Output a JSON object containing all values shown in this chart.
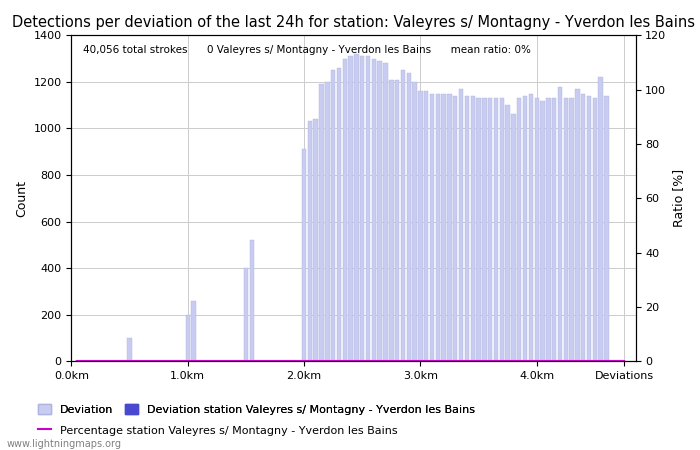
{
  "title": "Detections per deviation of the last 24h for station: Valeyres s/ Montagny - Yverdon les Bains",
  "xlabel": "",
  "ylabel_left": "Count",
  "ylabel_right": "Ratio [%]",
  "annotation_text": "40,056 total strokes      0 Valeyres s/ Montagny - Yverdon les Bains      mean ratio: 0%",
  "watermark": "www.lightningmaps.org",
  "xlim": [
    0.0,
    4.85
  ],
  "ylim_left": [
    0,
    1400
  ],
  "ylim_right": [
    0,
    120
  ],
  "xtick_labels": [
    "0.0km",
    "1.0km",
    "2.0km",
    "3.0km",
    "4.0km",
    "Deviations"
  ],
  "xtick_positions": [
    0.0,
    1.0,
    2.0,
    3.0,
    4.0,
    4.75
  ],
  "ytick_left": [
    0,
    200,
    400,
    600,
    800,
    1000,
    1200,
    1400
  ],
  "ytick_right": [
    0,
    20,
    40,
    60,
    80,
    100,
    120
  ],
  "bar_width": 0.038,
  "bar_color": "#c8ccf0",
  "bar_edge_color": "#b0b4e0",
  "station_bar_color": "#4848d0",
  "percentage_color": "#cc00cc",
  "background_color": "#ffffff",
  "plot_bg_color": "#ffffff",
  "grid_color": "#cccccc",
  "title_fontsize": 10.5,
  "axis_fontsize": 9,
  "tick_fontsize": 8,
  "legend_fontsize": 8,
  "bar_positions": [
    0.05,
    0.1,
    0.15,
    0.2,
    0.25,
    0.3,
    0.35,
    0.4,
    0.45,
    0.5,
    0.55,
    0.6,
    0.65,
    0.7,
    0.75,
    0.8,
    0.85,
    0.9,
    0.95,
    1.0,
    1.05,
    1.1,
    1.15,
    1.2,
    1.25,
    1.3,
    1.35,
    1.4,
    1.45,
    1.5,
    1.55,
    1.6,
    1.65,
    1.7,
    1.75,
    1.8,
    1.85,
    1.9,
    1.95,
    2.0,
    2.05,
    2.1,
    2.15,
    2.2,
    2.25,
    2.3,
    2.35,
    2.4,
    2.45,
    2.5,
    2.55,
    2.6,
    2.65,
    2.7,
    2.75,
    2.8,
    2.85,
    2.9,
    2.95,
    3.0,
    3.05,
    3.1,
    3.15,
    3.2,
    3.25,
    3.3,
    3.35,
    3.4,
    3.45,
    3.5,
    3.55,
    3.6,
    3.65,
    3.7,
    3.75,
    3.8,
    3.85,
    3.9,
    3.95,
    4.0,
    4.05,
    4.1,
    4.15,
    4.2,
    4.25,
    4.3,
    4.35,
    4.4,
    4.45,
    4.5,
    4.55,
    4.6,
    4.65,
    4.7,
    4.75
  ],
  "bar_values": [
    0,
    0,
    0,
    0,
    0,
    0,
    0,
    0,
    0,
    100,
    0,
    0,
    0,
    0,
    0,
    0,
    0,
    0,
    0,
    200,
    260,
    0,
    0,
    0,
    0,
    0,
    0,
    0,
    0,
    400,
    520,
    0,
    0,
    0,
    0,
    0,
    0,
    0,
    0,
    910,
    1030,
    1040,
    1190,
    1200,
    1250,
    1260,
    1300,
    1310,
    1320,
    1310,
    1310,
    1300,
    1290,
    1280,
    1210,
    1210,
    1250,
    1240,
    1200,
    1160,
    1160,
    1150,
    1150,
    1150,
    1150,
    1140,
    1170,
    1140,
    1140,
    1130,
    1130,
    1130,
    1130,
    1130,
    1100,
    1060,
    1130,
    1140,
    1150,
    1130,
    1120,
    1130,
    1130,
    1180,
    1130,
    1130,
    1170,
    1150,
    1140,
    1130,
    1220,
    1140,
    0,
    0,
    0
  ],
  "station_bar_values": [
    0,
    0,
    0,
    0,
    0,
    0,
    0,
    0,
    0,
    0,
    0,
    0,
    0,
    0,
    0,
    0,
    0,
    0,
    0,
    0,
    0,
    0,
    0,
    0,
    0,
    0,
    0,
    0,
    0,
    0,
    0,
    0,
    0,
    0,
    0,
    0,
    0,
    0,
    0,
    0,
    0,
    0,
    0,
    0,
    0,
    0,
    0,
    0,
    0,
    0,
    0,
    0,
    0,
    0,
    0,
    0,
    0,
    0,
    0,
    0,
    0,
    0,
    0,
    0,
    0,
    0,
    0,
    0,
    0,
    0,
    0,
    0,
    0,
    0,
    0,
    0,
    0,
    0,
    0,
    0,
    0,
    0,
    0,
    0,
    0,
    0,
    0,
    0,
    0,
    0,
    0,
    0,
    0,
    0,
    0
  ],
  "percentage_values": [
    0,
    0,
    0,
    0,
    0,
    0,
    0,
    0,
    0,
    0,
    0,
    0,
    0,
    0,
    0,
    0,
    0,
    0,
    0,
    0,
    0,
    0,
    0,
    0,
    0,
    0,
    0,
    0,
    0,
    0,
    0,
    0,
    0,
    0,
    0,
    0,
    0,
    0,
    0,
    0,
    0,
    0,
    0,
    0,
    0,
    0,
    0,
    0,
    0,
    0,
    0,
    0,
    0,
    0,
    0,
    0,
    0,
    0,
    0,
    0,
    0,
    0,
    0,
    0,
    0,
    0,
    0,
    0,
    0,
    0,
    0,
    0,
    0,
    0,
    0,
    0,
    0,
    0,
    0,
    0,
    0,
    0,
    0,
    0,
    0,
    0,
    0,
    0,
    0,
    0,
    0,
    0,
    0,
    0,
    0
  ]
}
